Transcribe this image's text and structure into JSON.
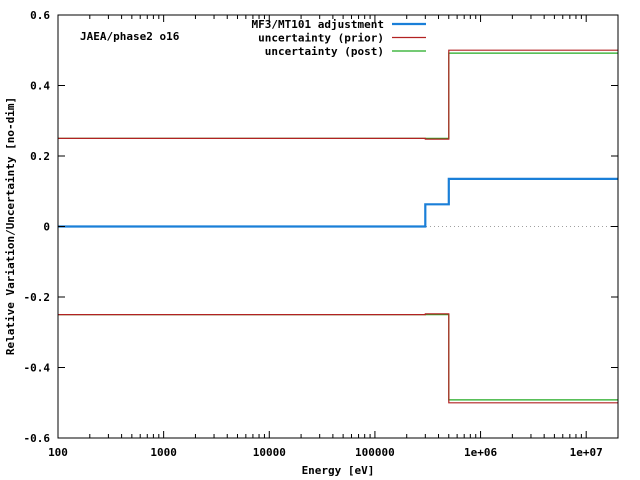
{
  "chart_data": {
    "type": "line",
    "title": "",
    "annotation": "JAEA/phase2 o16",
    "xlabel": "Energy [eV]",
    "ylabel": "Relative Variation/Uncertainty [no-dim]",
    "xscale": "log",
    "xlim": [
      100,
      20000000
    ],
    "ylim": [
      -0.6,
      0.6
    ],
    "x_ticks": [
      {
        "value": 100,
        "label": "100"
      },
      {
        "value": 1000,
        "label": "1000"
      },
      {
        "value": 10000,
        "label": "10000"
      },
      {
        "value": 100000,
        "label": "100000"
      },
      {
        "value": 1000000,
        "label": "1e+06"
      },
      {
        "value": 10000000,
        "label": "1e+07"
      }
    ],
    "y_ticks": [
      {
        "value": -0.6,
        "label": "-0.6"
      },
      {
        "value": -0.4,
        "label": "-0.4"
      },
      {
        "value": -0.2,
        "label": "-0.2"
      },
      {
        "value": 0,
        "label": "0"
      },
      {
        "value": 0.2,
        "label": "0.2"
      },
      {
        "value": 0.4,
        "label": "0.4"
      },
      {
        "value": 0.6,
        "label": "0.6"
      }
    ],
    "zero_line": true,
    "grid": false,
    "legend_position": "top-right",
    "series": [
      {
        "name": "MF3/MT101 adjustment",
        "color": "#1a7fd8",
        "width": 2.2,
        "mirror": false,
        "x": [
          100,
          300000,
          300000,
          500000,
          500000,
          20000000
        ],
        "y": [
          0,
          0,
          0.063,
          0.063,
          0.135,
          0.135
        ]
      },
      {
        "name": "uncertainty (prior)",
        "color": "#b22222",
        "width": 1.2,
        "mirror": true,
        "x": [
          100,
          300000,
          300000,
          500000,
          500000,
          20000000
        ],
        "y": [
          0.25,
          0.25,
          0.248,
          0.248,
          0.5,
          0.5
        ]
      },
      {
        "name": "uncertainty (post)",
        "color": "#22aa22",
        "width": 1.2,
        "mirror": true,
        "x": [
          100,
          300000,
          300000,
          500000,
          500000,
          20000000
        ],
        "y": [
          0.25,
          0.25,
          0.25,
          0.25,
          0.492,
          0.492
        ]
      }
    ]
  }
}
